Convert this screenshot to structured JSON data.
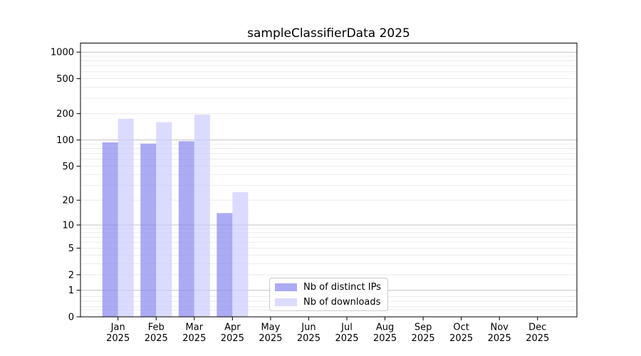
{
  "chart_data": {
    "type": "bar",
    "title": "sampleClassifierData 2025",
    "categories": [
      "Jan",
      "Feb",
      "Mar",
      "Apr",
      "May",
      "Jun",
      "Jul",
      "Aug",
      "Sep",
      "Oct",
      "Nov",
      "Dec"
    ],
    "category_year": "2025",
    "series": [
      {
        "name": "Nb of distinct IPs",
        "color": "#8888ee",
        "values": [
          94,
          91,
          97,
          14,
          null,
          null,
          null,
          null,
          null,
          null,
          null,
          null
        ]
      },
      {
        "name": "Nb of downloads",
        "color": "#ccccff",
        "values": [
          175,
          160,
          195,
          25,
          null,
          null,
          null,
          null,
          null,
          null,
          null,
          null
        ]
      }
    ],
    "y_axis": {
      "scale": "log10(1+value)",
      "tick_values": [
        0,
        1,
        2,
        5,
        10,
        20,
        50,
        100,
        200,
        500,
        1000
      ],
      "major_gridline_values": [
        1,
        10,
        100,
        1000
      ],
      "minor_gridline_values": [
        0.2,
        0.3,
        0.5,
        0.7,
        2,
        3,
        4,
        5,
        6,
        7,
        8,
        9,
        20,
        30,
        40,
        50,
        60,
        70,
        80,
        90,
        200,
        300,
        400,
        500,
        600,
        700,
        800,
        900
      ],
      "top_tick": 1000
    },
    "legend": {
      "position": "lower center",
      "entries": [
        "Nb of distinct IPs",
        "Nb of downloads"
      ]
    },
    "grid": true
  },
  "style": {
    "background": "#ffffff",
    "bar_opacity": 0.7,
    "grid_major_color": "#c3c3c3",
    "grid_minor_color": "#ebebeb",
    "axis_color": "#000000",
    "text_color": "#000000",
    "legend_border_color": "#cccccc"
  }
}
